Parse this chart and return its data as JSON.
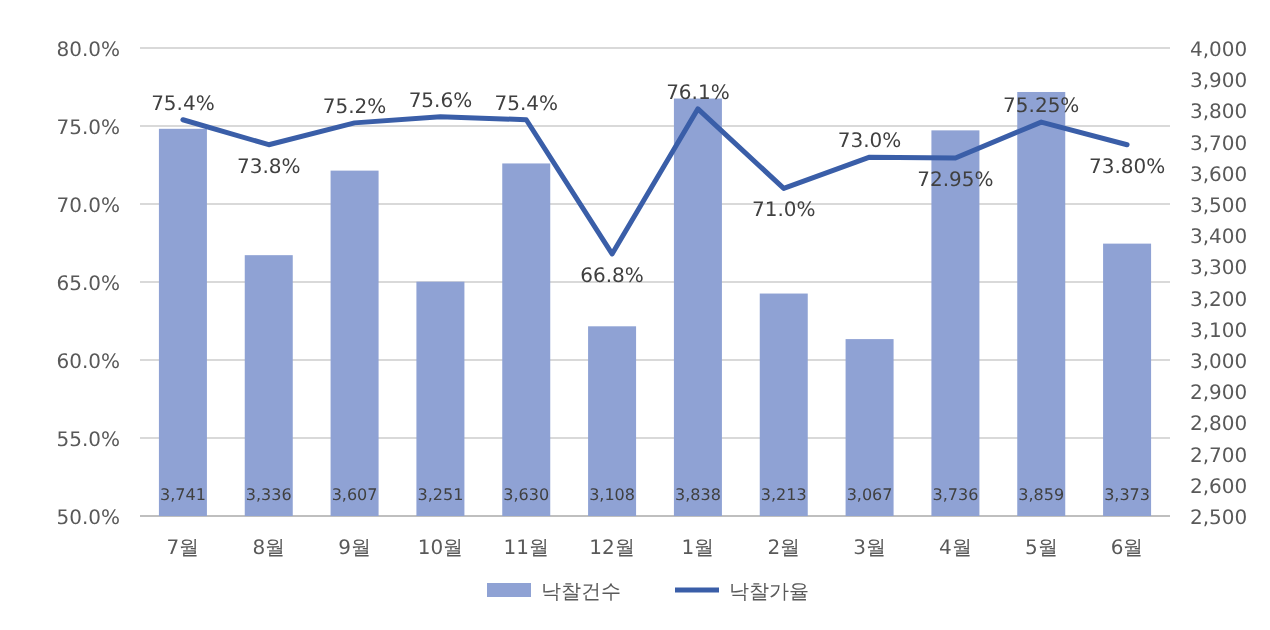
{
  "chart_data": {
    "type": "bar",
    "categories": [
      "7월",
      "8월",
      "9월",
      "10월",
      "11월",
      "12월",
      "1월",
      "2월",
      "3월",
      "4월",
      "5월",
      "6월"
    ],
    "series": [
      {
        "name": "낙찰건수",
        "axis": "y2",
        "color": "#8fa2d4",
        "values": [
          3741,
          3336,
          3607,
          3251,
          3630,
          3108,
          3838,
          3213,
          3067,
          3736,
          3859,
          3373
        ],
        "value_labels": [
          "3,741",
          "3,336",
          "3,607",
          "3,251",
          "3,630",
          "3,108",
          "3,838",
          "3,213",
          "3,067",
          "3,736",
          "3,859",
          "3,373"
        ]
      },
      {
        "name": "낙찰가율",
        "type": "line",
        "axis": "y",
        "color": "#3a5ea8",
        "values": [
          75.4,
          73.8,
          75.2,
          75.6,
          75.4,
          66.8,
          76.1,
          71.0,
          73.0,
          72.95,
          75.25,
          73.8
        ],
        "value_labels": [
          "75.4%",
          "73.8%",
          "75.2%",
          "75.6%",
          "75.4%",
          "66.8%",
          "76.1%",
          "71.0%",
          "73.0%",
          "72.95%",
          "75.25%",
          "73.80%"
        ]
      }
    ],
    "ylim": [
      50,
      80
    ],
    "yticks": [
      {
        "value": 50,
        "label": "50.0%"
      },
      {
        "value": 55,
        "label": "55.0%"
      },
      {
        "value": 60,
        "label": "60.0%"
      },
      {
        "value": 65,
        "label": "65.0%"
      },
      {
        "value": 70,
        "label": "70.0%"
      },
      {
        "value": 75,
        "label": "75.0%"
      },
      {
        "value": 80,
        "label": "80.0%"
      }
    ],
    "y2lim": [
      2500,
      4000
    ],
    "y2ticks": [
      {
        "value": 2500,
        "label": "2,500"
      },
      {
        "value": 2600,
        "label": "2,600"
      },
      {
        "value": 2700,
        "label": "2,700"
      },
      {
        "value": 2800,
        "label": "2,800"
      },
      {
        "value": 2900,
        "label": "2,900"
      },
      {
        "value": 3000,
        "label": "3,000"
      },
      {
        "value": 3100,
        "label": "3,100"
      },
      {
        "value": 3200,
        "label": "3,200"
      },
      {
        "value": 3300,
        "label": "3,300"
      },
      {
        "value": 3400,
        "label": "3,400"
      },
      {
        "value": 3500,
        "label": "3,500"
      },
      {
        "value": 3600,
        "label": "3,600"
      },
      {
        "value": 3700,
        "label": "3,700"
      },
      {
        "value": 3800,
        "label": "3,800"
      },
      {
        "value": 3900,
        "label": "3,900"
      },
      {
        "value": 4000,
        "label": "4,000"
      }
    ],
    "grid": "y",
    "legend": "bottom"
  }
}
